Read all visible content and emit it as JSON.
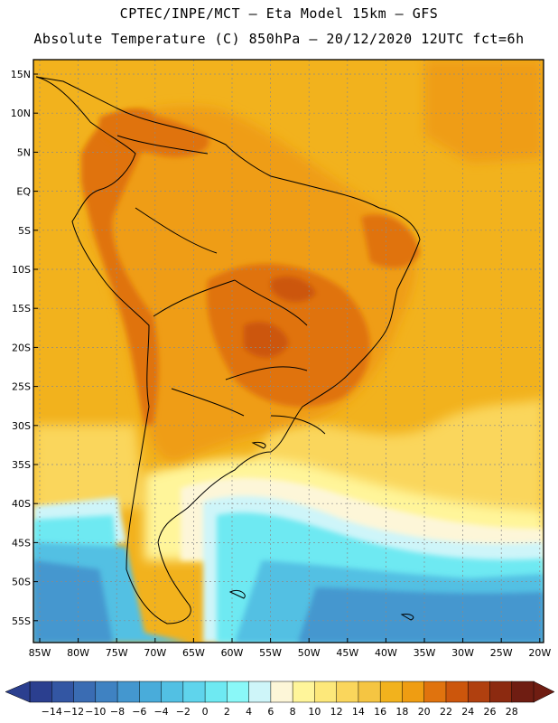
{
  "header": {
    "line1": "CPTEC/INPE/MCT –  Eta Model 15km – GFS",
    "line2": "Absolute Temperature (C) 850hPa – 20/12/2020 12UTC fct=6h"
  },
  "axes": {
    "lat_labels": [
      "15N",
      "10N",
      "5N",
      "EQ",
      "5S",
      "10S",
      "15S",
      "20S",
      "25S",
      "30S",
      "35S",
      "40S",
      "45S",
      "50S",
      "55S"
    ],
    "lon_labels": [
      "85W",
      "80W",
      "75W",
      "70W",
      "65W",
      "60W",
      "55W",
      "50W",
      "45W",
      "40W",
      "35W",
      "30W",
      "25W",
      "20W"
    ]
  },
  "colorbar": {
    "labels": [
      "−14",
      "−12",
      "−10",
      "−8",
      "−6",
      "−4",
      "−2",
      "0",
      "2",
      "4",
      "6",
      "8",
      "10",
      "12",
      "14",
      "16",
      "18",
      "20",
      "22",
      "24",
      "26",
      "28"
    ],
    "colors": [
      "#2b3f8f",
      "#3356a3",
      "#3a6cb3",
      "#3f82c2",
      "#4497cf",
      "#49acda",
      "#52c0e3",
      "#5fd4ec",
      "#6ee9f2",
      "#8af8f8",
      "#cef5f9",
      "#fdf6d8",
      "#fff59a",
      "#fde87a",
      "#fad65c",
      "#f5c542",
      "#f2b21d",
      "#ef9d12",
      "#e0730e",
      "#cc560c",
      "#b0400f",
      "#8c2a10",
      "#6f1d12"
    ]
  },
  "map_colors": {
    "background": "#f2b21d",
    "warm": "#ef9d12",
    "hot": "#e0730e",
    "hotter": "#cc560c",
    "cool_yellow": "#fad65c",
    "pale": "#fff59a",
    "cream": "#fdf6d8",
    "light_cyan": "#cef5f9",
    "cyan": "#6ee9f2",
    "sky": "#52c0e3",
    "blue": "#4497cf"
  }
}
